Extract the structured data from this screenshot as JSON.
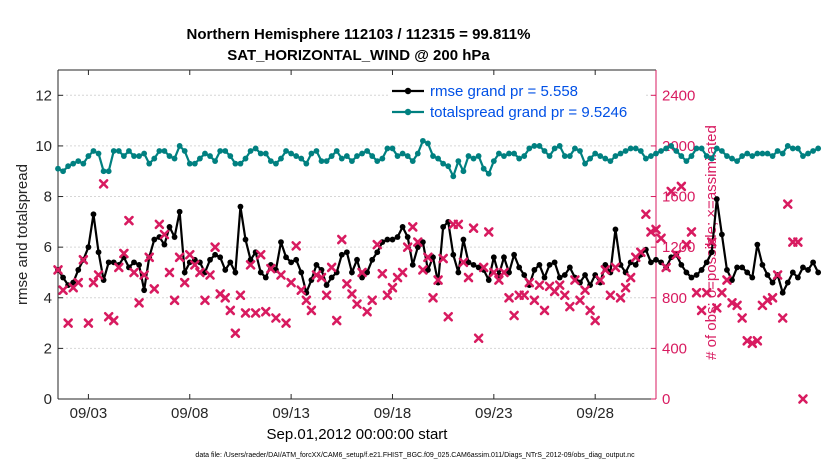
{
  "title_line1": "Northern Hemisphere 112103 / 112315 = 99.811%",
  "title_line2": "SAT_HORIZONTAL_WIND @ 200 hPa",
  "footer": "data file: /Users/raeder/DAI/ATM_forcXX/CAM6_setup/f.e21.FHIST_BGC.f09_025.CAM6assim.011/Diags_NTrS_2012-09/obs_diag_output.nc",
  "chart_data": {
    "type": "line",
    "xlabel": "Sep.01,2012 00:00:00 start",
    "ylabel_left": "rmse and totalspread",
    "ylabel_right": "# of obs: o=possible; ×=assimilated",
    "ylim_left": [
      0,
      13
    ],
    "ylim_right": [
      0,
      2600
    ],
    "xlim": [
      1.5,
      31.0
    ],
    "x_ticks": [
      3,
      8,
      13,
      18,
      23,
      28
    ],
    "x_tick_labels": [
      "09/03",
      "09/08",
      "09/13",
      "09/18",
      "09/23",
      "09/28"
    ],
    "y_ticks_left": [
      0,
      2,
      4,
      6,
      8,
      10,
      12
    ],
    "y_ticks_right": [
      0,
      400,
      800,
      1200,
      1600,
      2000,
      2400
    ],
    "grid": "horizontal dashed at left-axis ticks",
    "legend_placement": "top-right",
    "colors": {
      "rmse": "#000000",
      "totalspread": "#008080",
      "obs": "#d81b60",
      "right_axis": "#d81b60"
    },
    "series": [
      {
        "name": "rmse grand pr = 5.558",
        "axis": "left",
        "color": "#000000",
        "x_start": 1.5,
        "x_step": 0.25,
        "values": [
          5.1,
          4.8,
          4.5,
          4.6,
          5.1,
          5.5,
          6.0,
          7.3,
          5.8,
          4.7,
          5.4,
          5.4,
          5.3,
          5.6,
          5.2,
          5.4,
          5.3,
          4.3,
          5.6,
          6.3,
          6.4,
          6.1,
          6.8,
          6.4,
          7.4,
          5.0,
          5.4,
          5.5,
          5.4,
          5.0,
          5.5,
          5.7,
          5.6,
          5.1,
          5.4,
          5.0,
          7.6,
          6.3,
          5.5,
          5.8,
          5.0,
          4.8,
          5.3,
          5.1,
          6.2,
          5.6,
          5.4,
          5.5,
          5.0,
          4.2,
          4.7,
          5.3,
          5.1,
          4.5,
          4.8,
          5.0,
          5.7,
          5.8,
          5.0,
          5.5,
          4.8,
          5.0,
          5.5,
          5.8,
          6.2,
          6.3,
          6.3,
          6.4,
          6.8,
          6.4,
          5.3,
          6.0,
          6.2,
          5.1,
          5.6,
          4.6,
          6.8,
          7.0,
          5.7,
          5.0,
          6.3,
          5.4,
          5.3,
          5.2,
          5.1,
          4.7,
          5.6,
          4.9,
          5.6,
          5.0,
          5.7,
          5.2,
          4.9,
          4.5,
          5.1,
          5.3,
          4.8,
          5.3,
          5.4,
          4.8,
          4.9,
          5.2,
          4.8,
          4.6,
          4.9,
          4.5,
          4.9,
          4.6,
          5.3,
          5.0,
          6.7,
          5.3,
          5.0,
          5.4,
          5.3,
          5.7,
          5.9,
          5.4,
          5.5,
          5.4,
          5.2,
          5.6,
          5.7,
          5.3,
          5.0,
          4.8,
          4.9,
          5.1,
          5.4,
          5.8,
          7.9,
          6.5,
          5.1,
          4.7,
          5.2,
          5.2,
          5.0,
          4.8,
          6.1,
          5.3,
          4.9,
          4.6,
          4.9,
          4.2,
          4.6,
          5.0,
          4.8,
          5.2,
          5.1,
          5.4,
          5.0
        ]
      },
      {
        "name": "totalspread grand pr = 9.5246",
        "axis": "left",
        "color": "#008080",
        "x_start": 1.5,
        "x_step": 0.25,
        "values": [
          9.1,
          9.0,
          9.2,
          9.3,
          9.4,
          9.3,
          9.6,
          9.8,
          9.7,
          9.0,
          9.0,
          9.8,
          9.8,
          9.6,
          9.8,
          9.6,
          9.6,
          9.7,
          9.3,
          9.5,
          9.8,
          9.8,
          9.6,
          9.5,
          10.0,
          9.8,
          9.3,
          9.3,
          9.5,
          9.7,
          9.6,
          9.4,
          9.8,
          9.8,
          9.6,
          9.3,
          9.3,
          9.5,
          9.8,
          9.9,
          9.7,
          9.7,
          9.4,
          9.3,
          9.5,
          9.8,
          9.7,
          9.6,
          9.5,
          9.3,
          9.7,
          9.8,
          9.4,
          9.4,
          9.6,
          9.8,
          9.5,
          9.6,
          9.4,
          9.6,
          9.7,
          9.8,
          9.6,
          9.4,
          9.5,
          9.9,
          9.9,
          9.6,
          9.7,
          9.6,
          9.4,
          9.7,
          10.2,
          10.1,
          9.6,
          9.5,
          9.3,
          9.2,
          8.8,
          9.4,
          9.0,
          9.6,
          9.5,
          9.6,
          9.1,
          8.9,
          9.4,
          9.7,
          9.6,
          9.7,
          9.7,
          9.5,
          9.6,
          9.9,
          10.0,
          10.0,
          9.8,
          9.6,
          9.9,
          10.0,
          9.6,
          9.6,
          9.9,
          9.8,
          9.3,
          9.5,
          9.7,
          9.6,
          9.5,
          9.4,
          9.6,
          9.7,
          9.8,
          9.9,
          9.9,
          9.8,
          9.5,
          9.6,
          9.7,
          9.8,
          9.9,
          10.0,
          9.8,
          9.6,
          9.4,
          9.6,
          9.9,
          9.9,
          9.6,
          9.5,
          9.9,
          9.8,
          9.6,
          9.5,
          9.4,
          9.6,
          9.7,
          9.6,
          9.7,
          9.7,
          9.7,
          9.6,
          9.8,
          9.7,
          10.0,
          9.9,
          9.9,
          9.6,
          9.7,
          9.8,
          9.9
        ]
      },
      {
        "name": "assimilated",
        "axis": "right",
        "marker": "x",
        "color": "#d81b60",
        "x_start": 1.5,
        "x_step": 0.25,
        "values": [
          1020,
          860,
          600,
          880,
          920,
          1100,
          600,
          920,
          980,
          1700,
          650,
          620,
          1040,
          1150,
          1410,
          1000,
          760,
          980,
          1120,
          870,
          1380,
          1300,
          1000,
          780,
          1120,
          920,
          1140,
          1060,
          1000,
          780,
          980,
          1200,
          830,
          800,
          700,
          520,
          820,
          680,
          1060,
          680,
          1140,
          690,
          1030,
          640,
          980,
          600,
          920,
          1210,
          860,
          780,
          700,
          980,
          960,
          820,
          1040,
          620,
          1260,
          910,
          830,
          750,
          1000,
          690,
          780,
          1220,
          990,
          820,
          880,
          960,
          1000,
          1200,
          1360,
          1240,
          1020,
          1120,
          800,
          940,
          1110,
          650,
          1380,
          1380,
          1080,
          960,
          1350,
          480,
          1040,
          1320,
          1000,
          940,
          1000,
          800,
          660,
          820,
          820,
          920,
          780,
          900,
          700,
          890,
          850,
          900,
          820,
          730,
          940,
          780,
          860,
          700,
          620,
          940,
          1020,
          820,
          1040,
          800,
          880,
          960,
          1120,
          1160,
          1460,
          1320,
          1340,
          1270,
          1040,
          1640,
          1140,
          1680,
          1220,
          1320,
          840,
          700,
          840,
          1240,
          720,
          840,
          940,
          760,
          740,
          640,
          460,
          440,
          460,
          740,
          780,
          800,
          980,
          640,
          1540,
          1240,
          1240,
          0
        ]
      }
    ]
  }
}
